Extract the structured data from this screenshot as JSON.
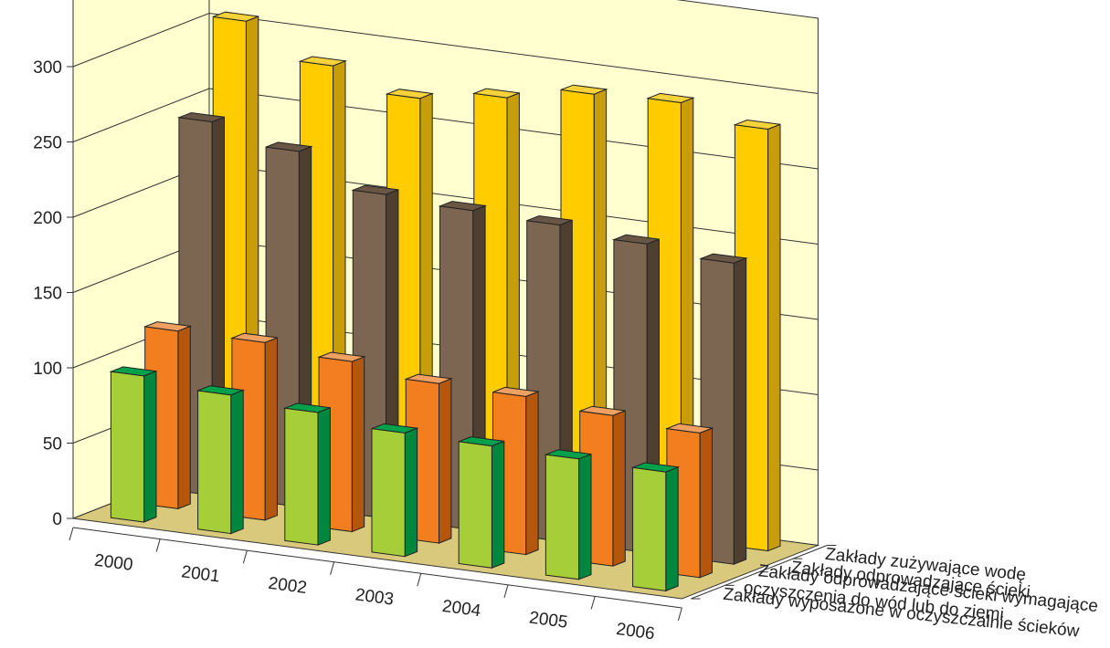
{
  "chart_data": {
    "type": "bar",
    "subtype": "3d-grouped-depth",
    "categories": [
      "2000",
      "2001",
      "2002",
      "2003",
      "2004",
      "2005",
      "2006"
    ],
    "series": [
      {
        "name": "Zakłady zużywające wodę",
        "values": [
          306,
          284,
          270,
          278,
          288,
          290,
          280
        ]
      },
      {
        "name": "Zakłady odprowadzające ścieki",
        "values": [
          248,
          236,
          215,
          212,
          210,
          205,
          200
        ]
      },
      {
        "name": "Zakłady odprowadzające ścieki wymagające\noczyszczenia do wód lub do ziemi",
        "values": [
          118,
          118,
          113,
          106,
          105,
          100,
          96
        ]
      },
      {
        "name": "Zakłady wyposażone w oczyszczalnie ścieków",
        "values": [
          97,
          92,
          88,
          82,
          81,
          80,
          79
        ]
      }
    ],
    "y_ticks": [
      0,
      50,
      100,
      150,
      200,
      250,
      300
    ],
    "ylim": [
      0,
      350
    ],
    "grid": true,
    "colors": {
      "series_front": [
        "#FFCC00",
        "#7C6651",
        "#F37E1F",
        "#A6CE39"
      ],
      "series_side": [
        "#C79E0A",
        "#4F3F30",
        "#B5560D",
        "#00873E"
      ],
      "series_top": [
        "#F7D23A",
        "#6A5644",
        "#F0A060",
        "#00A14B"
      ],
      "floor": "#D9C97D",
      "walls": "#FFFFD0"
    }
  }
}
